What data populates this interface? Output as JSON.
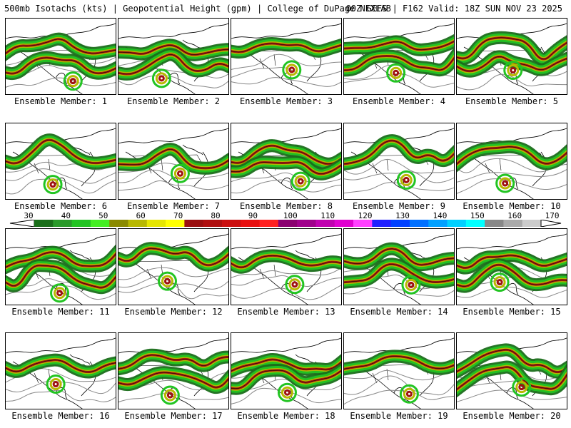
{
  "header": {
    "left_text": "500mb Isotachs (kts) | Geopotential Height (gpm) | College of DuPage NEXLAB",
    "right_text": "00Z GEFS | F162 Valid: 18Z SUN NOV 23 2025"
  },
  "caption_prefix": "Ensemble Member: ",
  "members": [
    {
      "label": "Ensemble Member: 1"
    },
    {
      "label": "Ensemble Member: 2"
    },
    {
      "label": "Ensemble Member: 3"
    },
    {
      "label": "Ensemble Member: 4"
    },
    {
      "label": "Ensemble Member: 5"
    },
    {
      "label": "Ensemble Member: 6"
    },
    {
      "label": "Ensemble Member: 7"
    },
    {
      "label": "Ensemble Member: 8"
    },
    {
      "label": "Ensemble Member: 9"
    },
    {
      "label": "Ensemble Member: 10"
    },
    {
      "label": "Ensemble Member: 11"
    },
    {
      "label": "Ensemble Member: 12"
    },
    {
      "label": "Ensemble Member: 13"
    },
    {
      "label": "Ensemble Member: 14"
    },
    {
      "label": "Ensemble Member: 15"
    },
    {
      "label": "Ensemble Member: 16"
    },
    {
      "label": "Ensemble Member: 17"
    },
    {
      "label": "Ensemble Member: 18"
    },
    {
      "label": "Ensemble Member: 19"
    },
    {
      "label": "Ensemble Member: 20"
    }
  ],
  "colorbar": {
    "labels": [
      "30",
      "40",
      "50",
      "60",
      "70",
      "80",
      "90",
      "100",
      "110",
      "120",
      "130",
      "140",
      "150",
      "160",
      "170"
    ],
    "colors": [
      "#1a6e1a",
      "#2a9a2a",
      "#22c422",
      "#44ee22",
      "#8a8a00",
      "#b8b800",
      "#e6e600",
      "#ffff00",
      "#9a1010",
      "#b01010",
      "#cc1010",
      "#e81010",
      "#ff2020",
      "#8a0070",
      "#a0008c",
      "#c000b0",
      "#e000d0",
      "#ff40ff",
      "#2020ff",
      "#0040ff",
      "#0070ff",
      "#00a0ff",
      "#00d0ff",
      "#00ffff",
      "#888888",
      "#aaaaaa",
      "#cccccc"
    ]
  },
  "colors": {
    "jet_dark_green": "#1a6e1a",
    "jet_green": "#22c422",
    "jet_yellow": "#b8b800",
    "jet_red": "#a01010",
    "contour_gray": "#888888",
    "coastline": "#000000"
  }
}
